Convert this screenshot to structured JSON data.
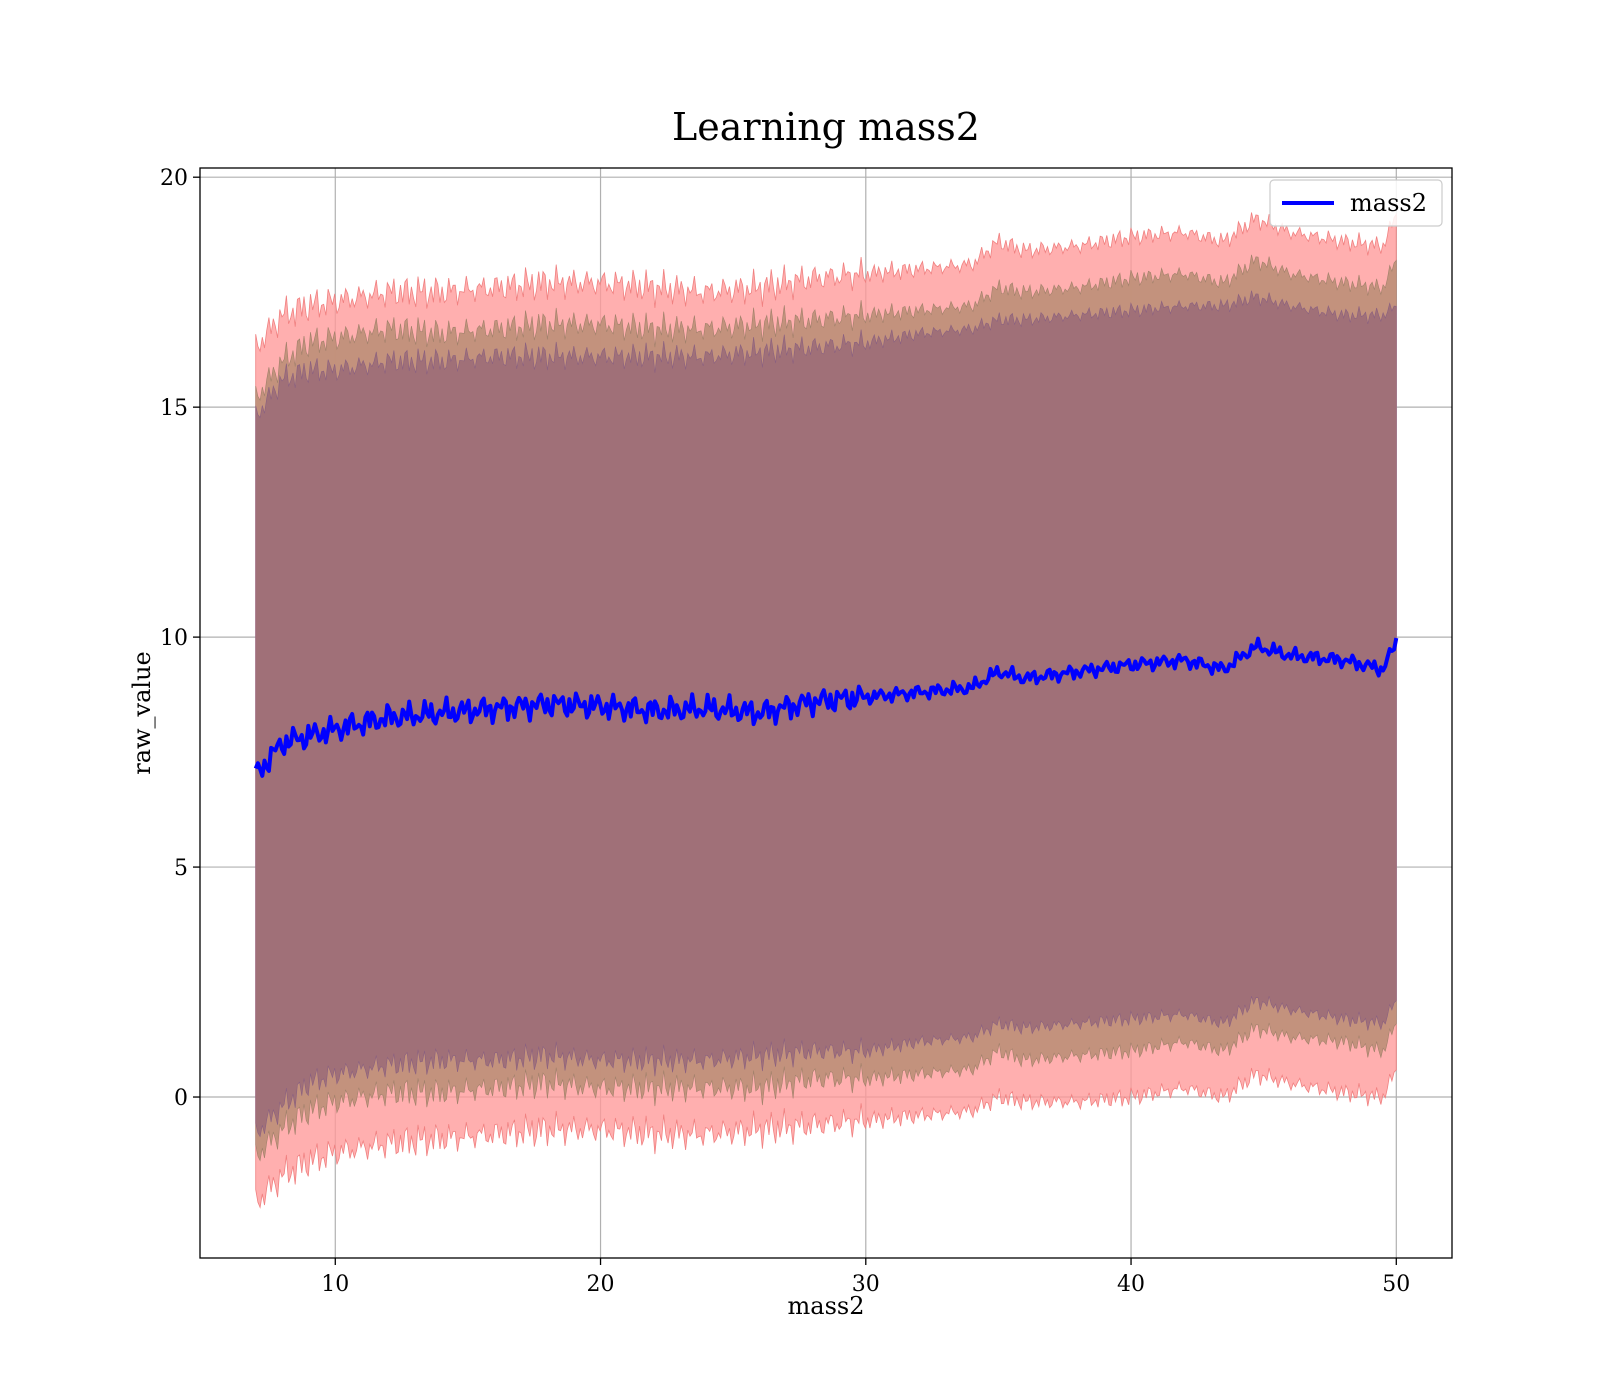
{
  "chart_data": {
    "type": "line",
    "title": "Learning mass2",
    "xlabel": "mass2",
    "ylabel": "raw_value",
    "xlim": [
      4.9,
      52.1
    ],
    "ylim": [
      -3.5,
      20.2
    ],
    "xticks": [
      10,
      20,
      30,
      40,
      50
    ],
    "yticks": [
      0,
      5,
      10,
      15,
      20
    ],
    "grid": true,
    "legend_position": "top-right",
    "colors": {
      "line": "#0000ff",
      "outer_band": "#ff9999",
      "middle_band": "#c0907a",
      "inner_band": "#a07078"
    },
    "series": [
      {
        "name": "mass2",
        "x": [
          7.0,
          8.0,
          9.0,
          10.0,
          12.0,
          14.0,
          16.0,
          18.0,
          20.0,
          22.0,
          24.0,
          26.0,
          28.0,
          30.0,
          32.0,
          34.0,
          35.0,
          36.0,
          38.0,
          40.0,
          42.0,
          43.5,
          44.7,
          46.0,
          48.0,
          49.5,
          50.0
        ],
        "mean": [
          7.0,
          7.7,
          7.85,
          8.0,
          8.25,
          8.35,
          8.45,
          8.55,
          8.5,
          8.4,
          8.45,
          8.35,
          8.6,
          8.7,
          8.8,
          8.9,
          9.25,
          9.1,
          9.25,
          9.4,
          9.5,
          9.3,
          9.8,
          9.6,
          9.5,
          9.3,
          9.9
        ],
        "inner_upper": [
          14.8,
          15.6,
          15.8,
          15.8,
          16.0,
          16.0,
          16.1,
          16.1,
          16.1,
          16.1,
          16.1,
          16.2,
          16.3,
          16.4,
          16.6,
          16.7,
          16.9,
          16.9,
          17.0,
          17.1,
          17.2,
          17.2,
          17.4,
          17.2,
          17.0,
          17.0,
          17.2
        ],
        "inner_lower": [
          -0.8,
          -0.2,
          0.3,
          0.5,
          0.7,
          0.8,
          0.8,
          0.9,
          0.8,
          0.8,
          0.8,
          0.9,
          1.0,
          1.0,
          1.2,
          1.3,
          1.6,
          1.5,
          1.6,
          1.7,
          1.8,
          1.6,
          2.1,
          1.9,
          1.7,
          1.6,
          2.1
        ],
        "middle_upper": [
          15.2,
          16.0,
          16.4,
          16.5,
          16.7,
          16.6,
          16.7,
          16.8,
          16.8,
          16.7,
          16.7,
          16.8,
          16.9,
          17.0,
          17.1,
          17.2,
          17.6,
          17.5,
          17.6,
          17.8,
          17.9,
          17.7,
          18.2,
          17.9,
          17.7,
          17.6,
          18.2
        ],
        "middle_lower": [
          -1.3,
          -0.7,
          -0.3,
          -0.1,
          0.1,
          0.1,
          0.2,
          0.3,
          0.2,
          0.2,
          0.2,
          0.2,
          0.4,
          0.4,
          0.5,
          0.6,
          1.0,
          0.8,
          0.9,
          1.0,
          1.2,
          1.0,
          1.5,
          1.3,
          1.2,
          1.0,
          1.6
        ],
        "outer_upper": [
          16.3,
          17.0,
          17.2,
          17.3,
          17.5,
          17.5,
          17.6,
          17.7,
          17.7,
          17.6,
          17.5,
          17.6,
          17.8,
          17.9,
          18.0,
          18.1,
          18.6,
          18.4,
          18.5,
          18.7,
          18.8,
          18.6,
          19.1,
          18.8,
          18.6,
          18.5,
          19.2
        ],
        "outer_lower": [
          -2.3,
          -1.7,
          -1.4,
          -1.2,
          -1.0,
          -0.9,
          -0.8,
          -0.7,
          -0.7,
          -0.8,
          -0.8,
          -0.7,
          -0.6,
          -0.5,
          -0.4,
          -0.3,
          0.0,
          -0.1,
          -0.1,
          0.0,
          0.2,
          0.0,
          0.5,
          0.3,
          0.1,
          0.0,
          0.6
        ]
      }
    ],
    "legend_entries": [
      "mass2"
    ]
  }
}
